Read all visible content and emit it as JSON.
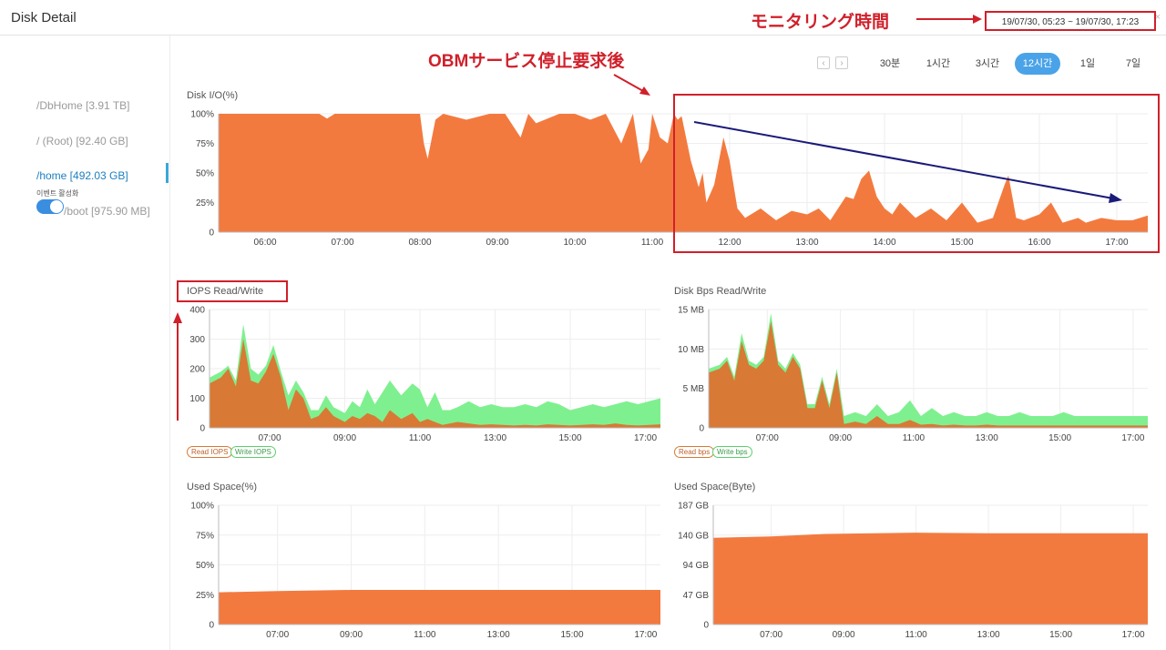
{
  "header": {
    "title": "Disk Detail",
    "time_range": "19/07/30, 05:23 ~ 19/07/30, 17:23",
    "close_label": "×"
  },
  "annotations": {
    "monitoring_time": "モニタリング時間",
    "after_stop": "OBMサービス停止要求後"
  },
  "disks": [
    {
      "label": "/DbHome [3.91 TB]",
      "active": false
    },
    {
      "label": "/ (Root) [92.40 GB]",
      "active": false
    },
    {
      "label": "/home [492.03 GB]",
      "active": true
    },
    {
      "label": "/boot [975.90 MB]",
      "active": false
    }
  ],
  "event_toggle": {
    "label": "이벤트 활성화",
    "on": true
  },
  "nav": {
    "prev": "‹",
    "next": "›"
  },
  "time_buttons": [
    {
      "label": "30분",
      "active": false
    },
    {
      "label": "1시간",
      "active": false
    },
    {
      "label": "3시간",
      "active": false
    },
    {
      "label": "12시간",
      "active": true
    },
    {
      "label": "1일",
      "active": false
    },
    {
      "label": "7일",
      "active": false
    }
  ],
  "colors": {
    "orange": "#f37a3f",
    "dark_orange": "#d87a35",
    "green": "#7ff08f",
    "accent_blue": "#4aa3e8",
    "annotation_red": "#d0202a",
    "trend_arrow": "#1a1a7a"
  },
  "chart_data": [
    {
      "id": "disk_io",
      "type": "area",
      "title": "Disk I/O(%)",
      "y_ticks": [
        "0",
        "25%",
        "50%",
        "75%",
        "100%"
      ],
      "ylim": [
        0,
        100
      ],
      "x_ticks": [
        "06:00",
        "07:00",
        "08:00",
        "09:00",
        "10:00",
        "11:00",
        "12:00",
        "13:00",
        "14:00",
        "15:00",
        "16:00",
        "17:00"
      ],
      "x_hours": [
        5.4,
        17.4
      ],
      "series": [
        {
          "x": [
            5.4,
            5.7,
            6.0,
            6.3,
            6.7,
            6.8,
            6.9,
            7.2,
            7.5,
            7.8,
            8.0,
            8.05,
            8.1,
            8.2,
            8.3,
            8.6,
            8.9,
            9.1,
            9.3,
            9.4,
            9.5,
            9.8,
            10.0,
            10.2,
            10.4,
            10.6,
            10.75,
            10.85,
            10.95,
            11.0,
            11.1,
            11.2,
            11.28,
            11.33,
            11.38,
            11.5,
            11.6,
            11.65,
            11.7,
            11.8,
            11.92,
            12.0,
            12.1,
            12.2,
            12.4,
            12.6,
            12.8,
            13.0,
            13.15,
            13.3,
            13.5,
            13.6,
            13.7,
            13.8,
            13.9,
            14.0,
            14.1,
            14.2,
            14.4,
            14.6,
            14.8,
            15.0,
            15.2,
            15.4,
            15.55,
            15.6,
            15.65,
            15.7,
            15.8,
            16.0,
            16.15,
            16.3,
            16.5,
            16.6,
            16.8,
            17.0,
            17.2,
            17.4
          ],
          "values": [
            100,
            100,
            100,
            100,
            100,
            96,
            100,
            100,
            100,
            100,
            100,
            75,
            62,
            95,
            100,
            95,
            100,
            100,
            80,
            100,
            92,
            100,
            100,
            95,
            100,
            75,
            100,
            58,
            70,
            100,
            80,
            75,
            100,
            95,
            98,
            60,
            38,
            50,
            25,
            40,
            80,
            60,
            20,
            12,
            20,
            10,
            18,
            15,
            20,
            10,
            30,
            28,
            45,
            52,
            30,
            20,
            15,
            25,
            12,
            20,
            10,
            25,
            8,
            12,
            40,
            48,
            30,
            12,
            10,
            15,
            25,
            8,
            12,
            8,
            12,
            10,
            10,
            14
          ]
        }
      ]
    },
    {
      "id": "iops",
      "type": "area",
      "title": "IOPS Read/Write",
      "y_ticks": [
        "0",
        "100",
        "200",
        "300",
        "400"
      ],
      "ylim": [
        0,
        400
      ],
      "x_ticks": [
        "07:00",
        "09:00",
        "11:00",
        "13:00",
        "15:00",
        "17:00"
      ],
      "x_hours": [
        5.4,
        17.4
      ],
      "legend": [
        "Read IOPS",
        "Write IOPS"
      ],
      "series": [
        {
          "name": "Write IOPS",
          "x": [
            5.4,
            5.7,
            5.9,
            6.1,
            6.3,
            6.5,
            6.7,
            6.9,
            7.1,
            7.3,
            7.5,
            7.7,
            7.9,
            8.1,
            8.3,
            8.5,
            8.7,
            9.0,
            9.2,
            9.4,
            9.6,
            9.8,
            10.0,
            10.2,
            10.5,
            10.8,
            11.0,
            11.2,
            11.4,
            11.6,
            11.8,
            12.0,
            12.3,
            12.6,
            12.9,
            13.2,
            13.5,
            13.8,
            14.1,
            14.4,
            14.7,
            15.0,
            15.3,
            15.6,
            15.9,
            16.2,
            16.5,
            16.8,
            17.1,
            17.4
          ],
          "values": [
            170,
            190,
            210,
            160,
            350,
            200,
            180,
            210,
            280,
            190,
            110,
            160,
            120,
            60,
            60,
            110,
            70,
            50,
            90,
            70,
            130,
            80,
            120,
            160,
            110,
            150,
            130,
            70,
            120,
            60,
            60,
            70,
            90,
            70,
            80,
            70,
            70,
            80,
            70,
            90,
            80,
            60,
            70,
            80,
            70,
            80,
            90,
            80,
            90,
            100
          ]
        },
        {
          "name": "Read IOPS",
          "x": [
            5.4,
            5.7,
            5.9,
            6.1,
            6.3,
            6.5,
            6.7,
            6.9,
            7.1,
            7.3,
            7.5,
            7.7,
            7.9,
            8.1,
            8.3,
            8.5,
            8.7,
            9.0,
            9.2,
            9.4,
            9.6,
            9.8,
            10.0,
            10.2,
            10.5,
            10.8,
            11.0,
            11.2,
            11.4,
            11.6,
            11.8,
            12.0,
            12.3,
            12.6,
            12.9,
            13.2,
            13.5,
            13.8,
            14.1,
            14.4,
            14.7,
            15.0,
            15.3,
            15.6,
            15.9,
            16.2,
            16.5,
            16.8,
            17.1,
            17.4
          ],
          "values": [
            150,
            170,
            200,
            140,
            300,
            160,
            150,
            190,
            250,
            170,
            60,
            130,
            100,
            30,
            40,
            70,
            40,
            20,
            40,
            30,
            50,
            40,
            20,
            60,
            30,
            50,
            20,
            30,
            20,
            10,
            15,
            20,
            15,
            10,
            12,
            10,
            8,
            10,
            8,
            12,
            10,
            8,
            10,
            12,
            10,
            15,
            10,
            8,
            10,
            12
          ]
        }
      ]
    },
    {
      "id": "disk_bps",
      "type": "area",
      "title": "Disk Bps Read/Write",
      "y_ticks": [
        "0",
        "5 MB",
        "10 MB",
        "15 MB"
      ],
      "ylim": [
        0,
        15
      ],
      "x_ticks": [
        "07:00",
        "09:00",
        "11:00",
        "13:00",
        "15:00",
        "17:00"
      ],
      "x_hours": [
        5.4,
        17.4
      ],
      "legend": [
        "Read bps",
        "Write bps"
      ],
      "series": [
        {
          "name": "Write bps",
          "x": [
            5.4,
            5.7,
            5.9,
            6.1,
            6.3,
            6.5,
            6.7,
            6.9,
            7.1,
            7.3,
            7.5,
            7.7,
            7.9,
            8.1,
            8.3,
            8.5,
            8.7,
            8.9,
            9.1,
            9.4,
            9.7,
            10.0,
            10.3,
            10.6,
            10.9,
            11.2,
            11.5,
            11.8,
            12.1,
            12.4,
            12.7,
            13.0,
            13.3,
            13.6,
            13.9,
            14.2,
            14.5,
            14.8,
            15.1,
            15.4,
            15.7,
            16.0,
            16.3,
            16.6,
            16.9,
            17.2,
            17.4
          ],
          "values": [
            7.5,
            8.0,
            9.0,
            6.5,
            12.0,
            8.5,
            8.0,
            9.0,
            14.5,
            8.5,
            7.5,
            9.5,
            8.0,
            3.0,
            3.0,
            6.5,
            3.0,
            7.5,
            1.5,
            2.0,
            1.5,
            3.0,
            1.5,
            2.0,
            3.5,
            1.5,
            2.5,
            1.5,
            2.0,
            1.5,
            1.5,
            2.0,
            1.5,
            1.5,
            2.0,
            1.5,
            1.5,
            1.5,
            2.0,
            1.5,
            1.5,
            1.5,
            1.5,
            1.5,
            1.5,
            1.5,
            1.5
          ]
        },
        {
          "name": "Read bps",
          "x": [
            5.4,
            5.7,
            5.9,
            6.1,
            6.3,
            6.5,
            6.7,
            6.9,
            7.1,
            7.3,
            7.5,
            7.7,
            7.9,
            8.1,
            8.3,
            8.5,
            8.7,
            8.9,
            9.1,
            9.4,
            9.7,
            10.0,
            10.3,
            10.6,
            10.9,
            11.2,
            11.5,
            11.8,
            12.1,
            12.4,
            12.7,
            13.0,
            13.3,
            13.6,
            13.9,
            14.2,
            14.5,
            14.8,
            15.1,
            15.4,
            15.7,
            16.0,
            16.3,
            16.6,
            16.9,
            17.2,
            17.4
          ],
          "values": [
            7.0,
            7.5,
            8.5,
            6.0,
            11.0,
            8.0,
            7.5,
            8.5,
            13.5,
            8.0,
            7.0,
            9.0,
            7.5,
            2.5,
            2.5,
            6.0,
            2.5,
            7.0,
            0.5,
            0.8,
            0.5,
            1.5,
            0.5,
            0.5,
            1.0,
            0.4,
            0.5,
            0.3,
            0.4,
            0.3,
            0.3,
            0.4,
            0.3,
            0.3,
            0.3,
            0.3,
            0.3,
            0.3,
            0.3,
            0.3,
            0.3,
            0.3,
            0.3,
            0.3,
            0.3,
            0.3,
            0.3
          ]
        }
      ]
    },
    {
      "id": "used_pct",
      "type": "area",
      "title": "Used Space(%)",
      "y_ticks": [
        "0",
        "25%",
        "50%",
        "75%",
        "100%"
      ],
      "ylim": [
        0,
        100
      ],
      "x_ticks": [
        "07:00",
        "09:00",
        "11:00",
        "13:00",
        "15:00",
        "17:00"
      ],
      "x_hours": [
        5.4,
        17.4
      ],
      "series": [
        {
          "x": [
            5.4,
            7.0,
            9.0,
            11.0,
            13.0,
            15.0,
            17.4
          ],
          "values": [
            27,
            28,
            29,
            29,
            29,
            29,
            29
          ]
        }
      ]
    },
    {
      "id": "used_bytes",
      "type": "area",
      "title": "Used Space(Byte)",
      "y_ticks": [
        "0",
        "47 GB",
        "94 GB",
        "140 GB",
        "187 GB"
      ],
      "ylim": [
        0,
        187
      ],
      "x_ticks": [
        "07:00",
        "09:00",
        "11:00",
        "13:00",
        "15:00",
        "17:00"
      ],
      "x_hours": [
        5.4,
        17.4
      ],
      "series": [
        {
          "x": [
            5.4,
            7.0,
            8.5,
            11.0,
            13.0,
            15.0,
            17.4
          ],
          "values": [
            136,
            138,
            142,
            144,
            143,
            143,
            143
          ]
        }
      ]
    }
  ]
}
